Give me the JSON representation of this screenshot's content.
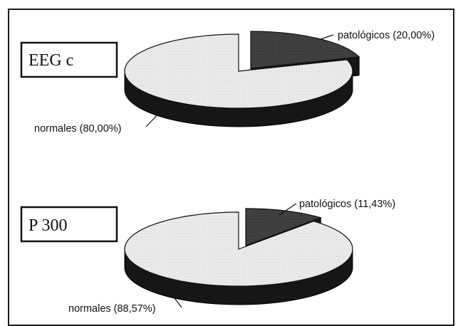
{
  "colors": {
    "normal_fill": "#ececec",
    "pathological_fill": "#3a3a3a",
    "side_dark": "#161616",
    "frame": "#1a1a1a"
  },
  "chart_data": [
    {
      "type": "pie",
      "title": "EEG c",
      "slices": [
        {
          "name": "normales",
          "label": "normales (80,00%)",
          "value": 80.0
        },
        {
          "name": "patológicos",
          "label": "patológicos (20,00%)",
          "value": 20.0
        }
      ],
      "three_d": true,
      "exploded_slice": "patológicos"
    },
    {
      "type": "pie",
      "title": "P 300",
      "slices": [
        {
          "name": "normales",
          "label": "normales (88,57%)",
          "value": 88.57
        },
        {
          "name": "patológicos",
          "label": "patológicos (11,43%)",
          "value": 11.43
        }
      ],
      "three_d": true,
      "exploded_slice": "patológicos"
    }
  ]
}
